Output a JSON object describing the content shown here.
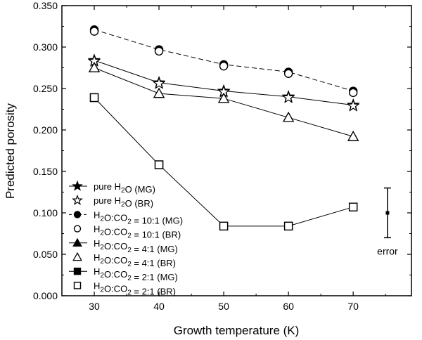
{
  "chart_data": {
    "type": "line",
    "title": "",
    "xlabel": "Growth temperature (K)",
    "ylabel": "Predicted porosity",
    "xlim": [
      25,
      79
    ],
    "ylim": [
      0.0,
      0.35
    ],
    "x": [
      30,
      40,
      50,
      60,
      70
    ],
    "x_ticks": [
      "30",
      "40",
      "50",
      "60",
      "70"
    ],
    "y_ticks": [
      "0.000",
      "0.050",
      "0.100",
      "0.150",
      "0.200",
      "0.250",
      "0.300",
      "0.350"
    ],
    "grid": false,
    "legend_position": "bottom-left",
    "series": [
      {
        "name": "pure H2O (MG)",
        "legend_main": "pure H",
        "legend_sub": "2",
        "legend_tail": "O (MG)",
        "marker": "star",
        "filled": true,
        "line": "solid",
        "values": [
          0.284,
          0.257,
          0.247,
          0.24,
          0.23
        ]
      },
      {
        "name": "pure H2O (BR)",
        "legend_main": "pure H",
        "legend_sub": "2",
        "legend_tail": "O (BR)",
        "marker": "star",
        "filled": false,
        "line": "none",
        "values": [
          0.283,
          0.256,
          0.246,
          0.239,
          0.229
        ]
      },
      {
        "name": "H2O:CO2 = 10:1 (MG)",
        "legend_main": "H",
        "legend_sub": "2",
        "legend_mid": "O:CO",
        "legend_sub2": "2",
        "legend_tail": " = 10:1 (MG)",
        "marker": "circle",
        "filled": true,
        "line": "dash",
        "values": [
          0.321,
          0.297,
          0.279,
          0.27,
          0.247
        ]
      },
      {
        "name": "H2O:CO2 = 10:1 (BR)",
        "legend_main": "H",
        "legend_sub": "2",
        "legend_mid": "O:CO",
        "legend_sub2": "2",
        "legend_tail": " = 10:1 (BR)",
        "marker": "circle",
        "filled": false,
        "line": "none",
        "values": [
          0.319,
          0.295,
          0.277,
          0.268,
          0.245
        ]
      },
      {
        "name": "H2O:CO2 = 4:1 (MG)",
        "legend_main": "H",
        "legend_sub": "2",
        "legend_mid": "O:CO",
        "legend_sub2": "2",
        "legend_tail": " = 4:1 (MG)",
        "marker": "triangle",
        "filled": true,
        "line": "solid",
        "values": [
          0.275,
          0.244,
          0.238,
          0.215,
          0.192
        ]
      },
      {
        "name": "H2O:CO2 = 4:1 (BR)",
        "legend_main": "H",
        "legend_sub": "2",
        "legend_mid": "O:CO",
        "legend_sub2": "2",
        "legend_tail": " = 4:1 (BR)",
        "marker": "triangle",
        "filled": false,
        "line": "none",
        "values": [
          0.275,
          0.244,
          0.238,
          0.215,
          0.192
        ]
      },
      {
        "name": "H2O:CO2 = 2:1 (MG)",
        "legend_main": "H",
        "legend_sub": "2",
        "legend_mid": "O:CO",
        "legend_sub2": "2",
        "legend_tail": " = 2:1 (MG)",
        "marker": "square",
        "filled": true,
        "line": "solid",
        "values": [
          0.239,
          0.158,
          0.084,
          0.084,
          0.107
        ]
      },
      {
        "name": "H2O:CO2 = 2:1 (BR)",
        "legend_main": "H",
        "legend_sub": "2",
        "legend_mid": "O:CO",
        "legend_sub2": "2",
        "legend_tail": " = 2:1 (BR)",
        "marker": "square",
        "filled": false,
        "line": "none",
        "values": [
          0.239,
          0.158,
          0.084,
          0.084,
          0.107
        ]
      }
    ],
    "error_bar": {
      "label": "error",
      "x": 75.3,
      "center": 0.1,
      "low": 0.07,
      "high": 0.13
    }
  }
}
